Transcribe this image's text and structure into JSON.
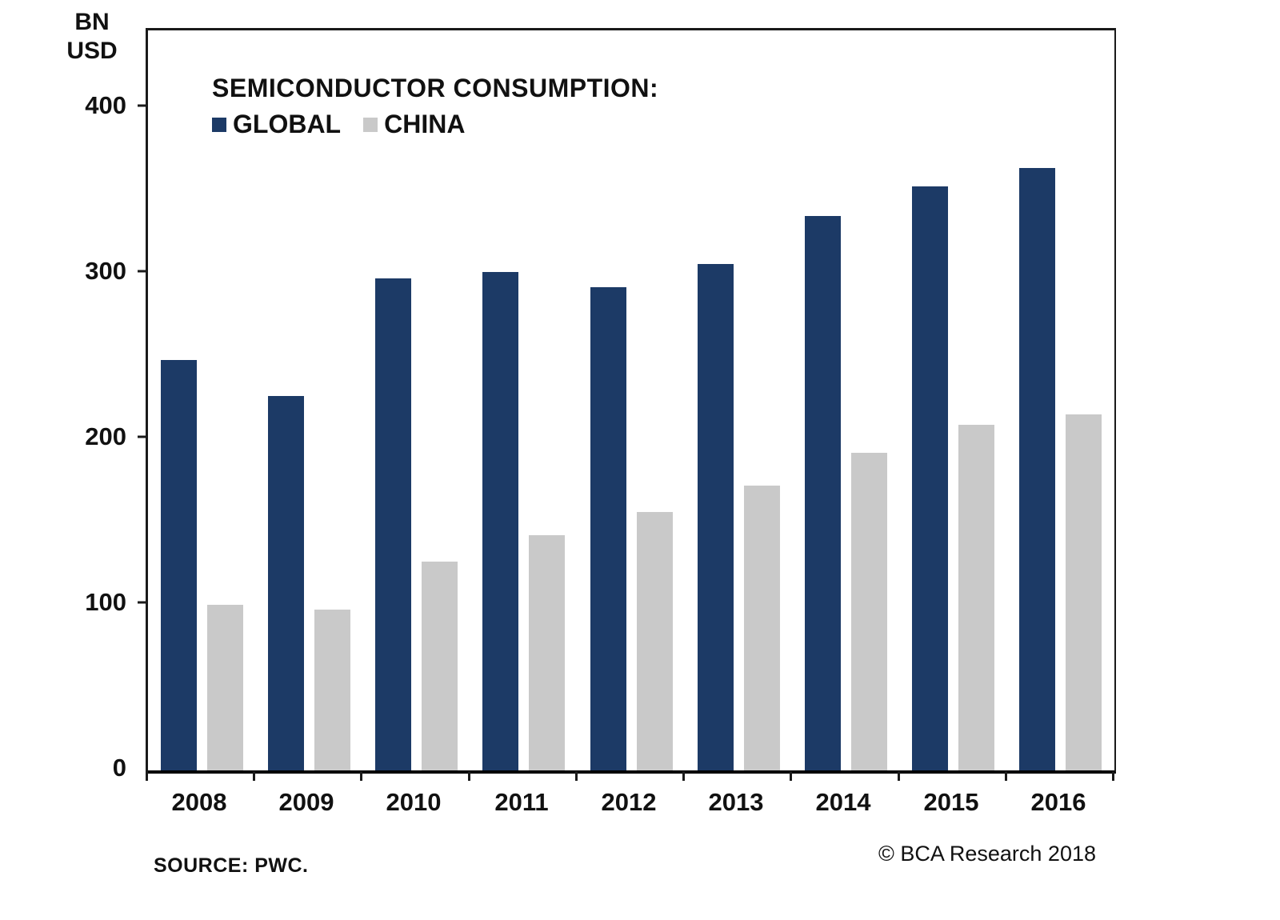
{
  "unit": {
    "line1": "BN",
    "line2": "USD"
  },
  "chart_data": {
    "type": "bar",
    "title": "SEMICONDUCTOR CONSUMPTION:",
    "unit_label": "BN USD",
    "categories": [
      "2008",
      "2009",
      "2010",
      "2011",
      "2012",
      "2013",
      "2014",
      "2015",
      "2016"
    ],
    "series": [
      {
        "name": "GLOBAL",
        "color": "#1c3a66",
        "values": [
          248,
          226,
          297,
          301,
          292,
          306,
          335,
          353,
          364
        ]
      },
      {
        "name": "CHINA",
        "color": "#c9c9c9",
        "values": [
          100,
          97,
          126,
          142,
          156,
          172,
          192,
          209,
          215
        ]
      }
    ],
    "ylim": [
      0,
      447
    ],
    "yticks": [
      0,
      100,
      200,
      300,
      400
    ],
    "grid": false,
    "legend_position": "top-left"
  },
  "footer": {
    "source": "SOURCE: PWC.",
    "credit": "© BCA Research 2018"
  }
}
